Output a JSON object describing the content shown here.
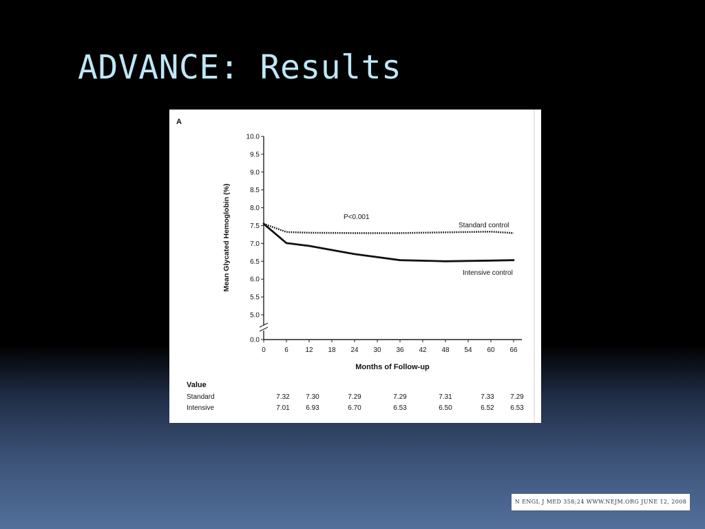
{
  "slide": {
    "title": "ADVANCE: Results",
    "citation": "N ENGL J MED 358;24   WWW.NEJM.ORG   JUNE 12, 2008"
  },
  "chart_data": {
    "type": "line",
    "panel_label": "A",
    "xlabel": "Months of Follow-up",
    "ylabel": "Mean Glycated Hemoglobin (%)",
    "x_ticks": [
      0,
      6,
      12,
      18,
      24,
      30,
      36,
      42,
      48,
      54,
      60,
      66
    ],
    "y_ticks": [
      "0.0",
      "5.0",
      "5.5",
      "6.0",
      "6.5",
      "7.0",
      "7.5",
      "8.0",
      "8.5",
      "9.0",
      "9.5",
      "10.0"
    ],
    "xlim": [
      0,
      66
    ],
    "ylim": [
      5.0,
      10.0
    ],
    "axis_break": true,
    "annotation": "P<0.001",
    "series": [
      {
        "name": "Standard control",
        "style": "dotted",
        "x": [
          0,
          6,
          12,
          24,
          36,
          48,
          60,
          66
        ],
        "y": [
          7.55,
          7.32,
          7.3,
          7.29,
          7.29,
          7.31,
          7.33,
          7.29
        ]
      },
      {
        "name": "Intensive control",
        "style": "solid",
        "x": [
          0,
          6,
          12,
          24,
          36,
          48,
          60,
          66
        ],
        "y": [
          7.55,
          7.01,
          6.93,
          6.7,
          6.53,
          6.5,
          6.52,
          6.53
        ]
      }
    ],
    "value_table": {
      "heading": "Value",
      "rows": [
        {
          "label": "Standard",
          "months": [
            6,
            12,
            24,
            36,
            48,
            60,
            66
          ],
          "values": [
            "7.32",
            "7.30",
            "7.29",
            "7.29",
            "7.31",
            "7.33",
            "7.29"
          ]
        },
        {
          "label": "Intensive",
          "months": [
            6,
            12,
            24,
            36,
            48,
            60,
            66
          ],
          "values": [
            "7.01",
            "6.93",
            "6.70",
            "6.53",
            "6.50",
            "6.52",
            "6.53"
          ]
        }
      ]
    }
  },
  "colors": {
    "title": "#bfe6f7",
    "chart_ink": "#111111"
  }
}
